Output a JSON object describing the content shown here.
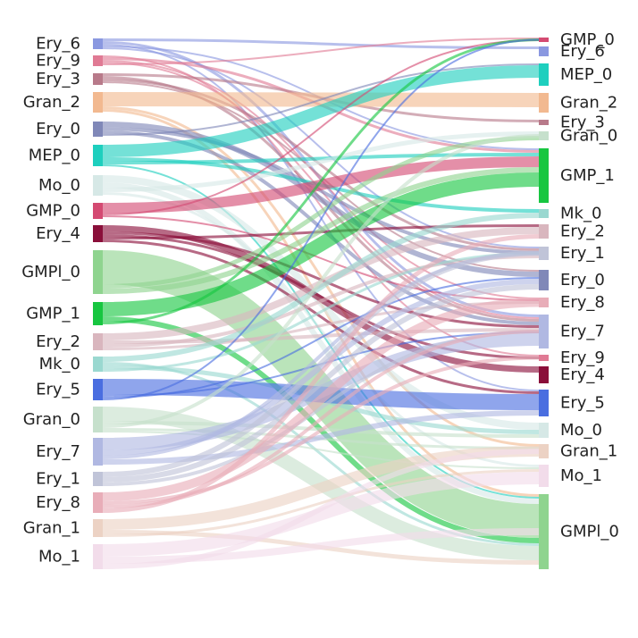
{
  "diagram": {
    "type": "sankey",
    "left_nodes": [
      {
        "label": "Ery_6",
        "color": "#8a98e0"
      },
      {
        "label": "Ery_9",
        "color": "#e07a94"
      },
      {
        "label": "Ery_3",
        "color": "#b87a8a"
      },
      {
        "label": "Gran_2",
        "color": "#f2b990"
      },
      {
        "label": "Ery_0",
        "color": "#8088b8"
      },
      {
        "label": "MEP_0",
        "color": "#1ecfbe"
      },
      {
        "label": "Mo_0",
        "color": "#d6e8e6"
      },
      {
        "label": "GMP_0",
        "color": "#d44a72"
      },
      {
        "label": "Ery_4",
        "color": "#8a0f3a"
      },
      {
        "label": "GMPl_0",
        "color": "#8fd48f"
      },
      {
        "label": "GMP_1",
        "color": "#17c640"
      },
      {
        "label": "Ery_2",
        "color": "#d9b6be"
      },
      {
        "label": "Mk_0",
        "color": "#9ad8d0"
      },
      {
        "label": "Ery_5",
        "color": "#4a6ee0"
      },
      {
        "label": "Gran_0",
        "color": "#c6e0cc"
      },
      {
        "label": "Ery_7",
        "color": "#b0b8e2"
      },
      {
        "label": "Ery_1",
        "color": "#c0c4d8"
      },
      {
        "label": "Ery_8",
        "color": "#e8adb8"
      },
      {
        "label": "Gran_1",
        "color": "#ecd2c4"
      },
      {
        "label": "Mo_1",
        "color": "#f2dcea"
      }
    ],
    "right_nodes": [
      {
        "label": "GMP_0",
        "color": "#d44a72"
      },
      {
        "label": "Ery_6",
        "color": "#8a98e0"
      },
      {
        "label": "MEP_0",
        "color": "#1ecfbe"
      },
      {
        "label": "Gran_2",
        "color": "#f2b990"
      },
      {
        "label": "Ery_3",
        "color": "#b87a8a"
      },
      {
        "label": "Gran_0",
        "color": "#c6e0cc"
      },
      {
        "label": "GMP_1",
        "color": "#17c640"
      },
      {
        "label": "Mk_0",
        "color": "#9ad8d0"
      },
      {
        "label": "Ery_2",
        "color": "#d9b6be"
      },
      {
        "label": "Ery_1",
        "color": "#c0c4d8"
      },
      {
        "label": "Ery_0",
        "color": "#8088b8"
      },
      {
        "label": "Ery_8",
        "color": "#e8adb8"
      },
      {
        "label": "Ery_7",
        "color": "#b0b8e2"
      },
      {
        "label": "Ery_9",
        "color": "#e07a94"
      },
      {
        "label": "Ery_4",
        "color": "#8a0f3a"
      },
      {
        "label": "Ery_5",
        "color": "#4a6ee0"
      },
      {
        "label": "Mo_0",
        "color": "#d6e8e6"
      },
      {
        "label": "Gran_1",
        "color": "#ecd2c4"
      },
      {
        "label": "Mo_1",
        "color": "#f2dcea"
      },
      {
        "label": "GMPl_0",
        "color": "#8fd48f"
      }
    ]
  }
}
